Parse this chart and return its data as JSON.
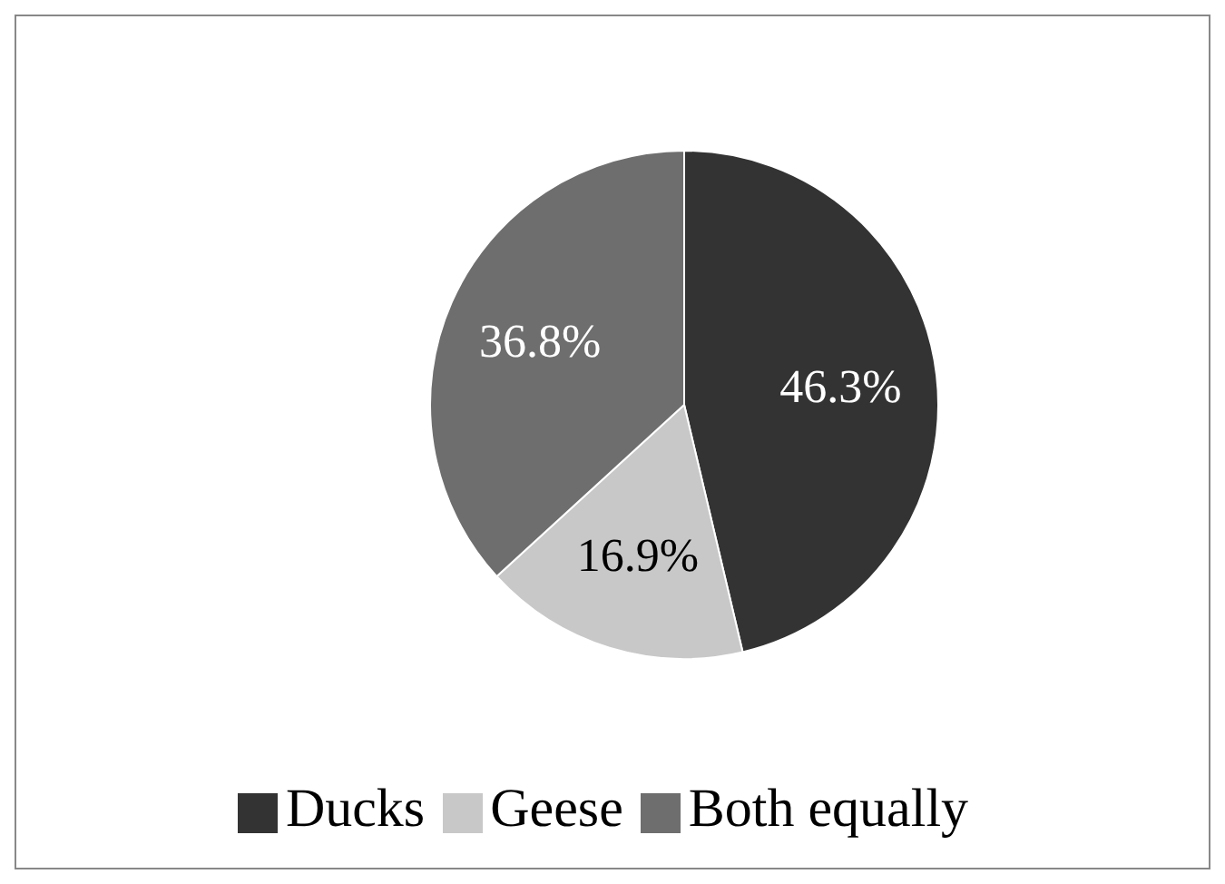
{
  "chart_data": {
    "type": "pie",
    "categories": [
      "Ducks",
      "Geese",
      "Both equally"
    ],
    "values": [
      46.3,
      16.9,
      36.8
    ],
    "colors": [
      "#333333",
      "#c8c8c8",
      "#6e6e6e"
    ],
    "value_labels": [
      "46.3%",
      "16.9%",
      "36.8%"
    ],
    "legend": "bottom"
  }
}
